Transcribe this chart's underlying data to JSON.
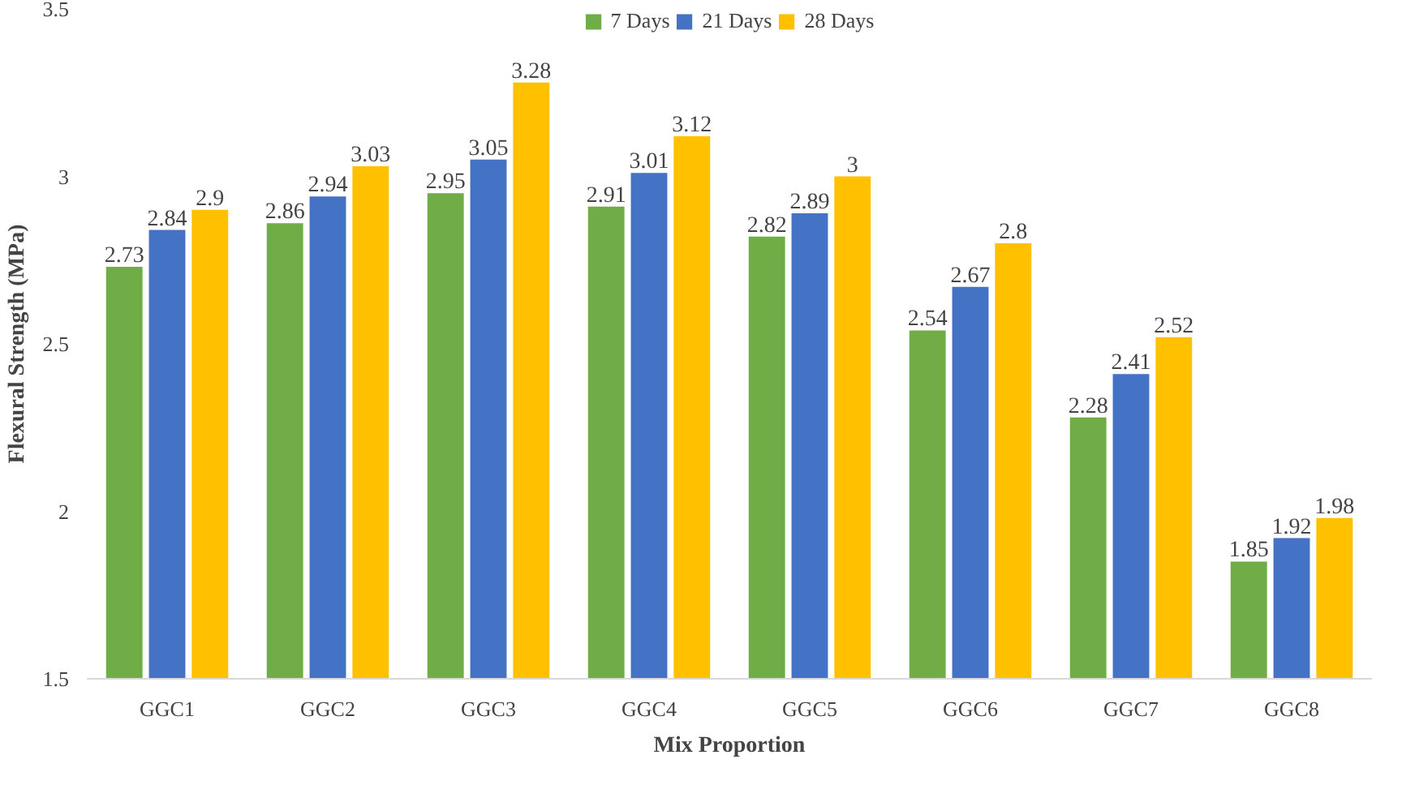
{
  "chart_data": {
    "type": "bar",
    "xlabel": "Mix Proportion",
    "ylabel": "Flexural Strength (MPa)",
    "categories": [
      "GGC1",
      "GGC2",
      "GGC3",
      "GGC4",
      "GGC5",
      "GGC6",
      "GGC7",
      "GGC8"
    ],
    "series": [
      {
        "name": "7 Days",
        "color": "#70ad47",
        "values": [
          2.73,
          2.86,
          2.95,
          2.91,
          2.82,
          2.54,
          2.28,
          1.85
        ]
      },
      {
        "name": "21 Days",
        "color": "#4472c4",
        "values": [
          2.84,
          2.94,
          3.05,
          3.01,
          2.89,
          2.67,
          2.41,
          1.92
        ]
      },
      {
        "name": "28 Days",
        "color": "#ffc000",
        "values": [
          2.9,
          3.03,
          3.28,
          3.12,
          3,
          2.8,
          2.52,
          1.98
        ]
      }
    ],
    "ylim": [
      1.5,
      3.5
    ],
    "yticks": [
      1.5,
      2,
      2.5,
      3,
      3.5
    ],
    "data_labels": true,
    "legend": "top",
    "grid": false
  }
}
